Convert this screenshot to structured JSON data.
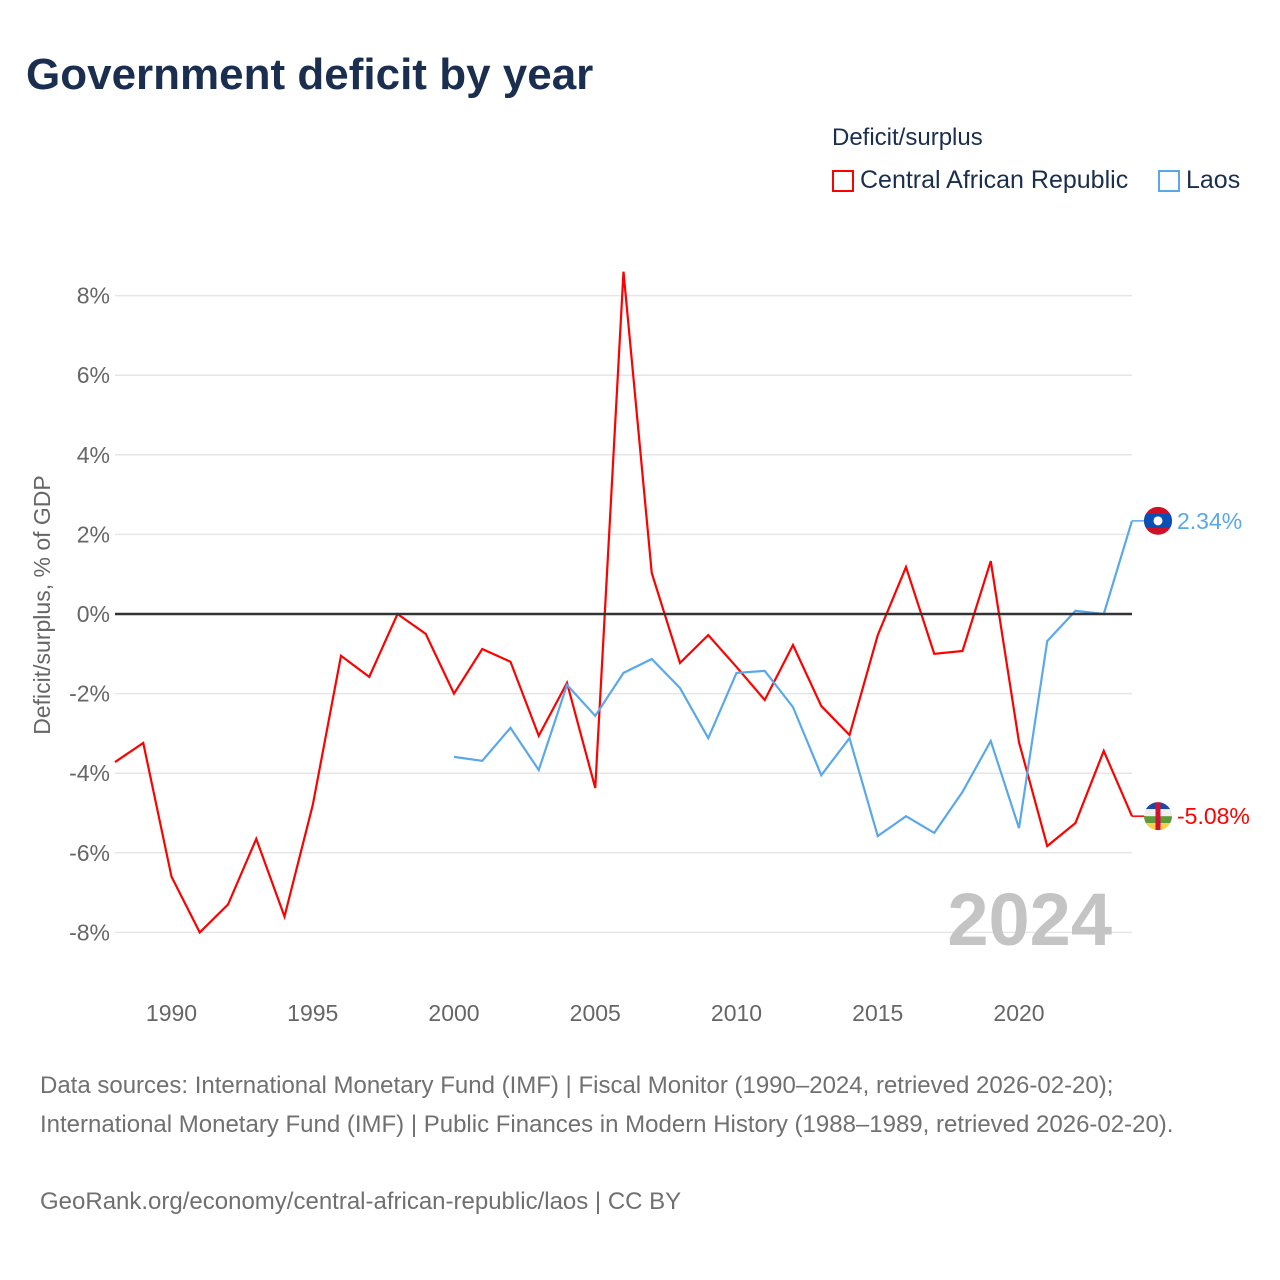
{
  "title": "Government deficit by year",
  "legend": {
    "title": "Deficit/surplus",
    "items": [
      {
        "name": "Central African Republic",
        "color": "#ff0000"
      },
      {
        "name": "Laos",
        "color": "#5aa8ea"
      }
    ]
  },
  "chart_data": {
    "type": "line",
    "title": "Government deficit by year",
    "xlabel": "",
    "ylabel": "Deficit/surplus, % of GDP",
    "xlim": [
      1988,
      2024
    ],
    "ylim": [
      -9.2,
      9
    ],
    "grid": true,
    "legend_position": "top-right",
    "x_ticks": [
      1990,
      1995,
      2000,
      2005,
      2010,
      2015,
      2020
    ],
    "x_tick_labels": [
      "1990",
      "1995",
      "2000",
      "2005",
      "2010",
      "2015",
      "2020"
    ],
    "y_ticks": [
      8,
      6,
      4,
      2,
      0,
      -2,
      -4,
      -6,
      -8
    ],
    "y_tick_labels": [
      "8%",
      "6%",
      "4%",
      "2%",
      "0%",
      "-2%",
      "-4%",
      "-6%",
      "-8%"
    ],
    "year_watermark": "2024",
    "series": [
      {
        "name": "Central African Republic",
        "color": "#ff0000",
        "end_label": "-5.08%",
        "x": [
          1988,
          1989,
          1990,
          1991,
          1992,
          1993,
          1994,
          1995,
          1996,
          1997,
          1998,
          1999,
          2000,
          2001,
          2002,
          2003,
          2004,
          2005,
          2006,
          2007,
          2008,
          2009,
          2010,
          2011,
          2012,
          2013,
          2014,
          2015,
          2016,
          2017,
          2018,
          2019,
          2020,
          2021,
          2022,
          2023,
          2024
        ],
        "values": [
          -3.72,
          -3.24,
          -6.6,
          -8.0,
          -7.3,
          -5.65,
          -7.6,
          -4.8,
          -1.05,
          -1.58,
          0.0,
          -0.5,
          -2.0,
          -0.88,
          -1.2,
          -3.06,
          -1.73,
          -4.37,
          8.6,
          1.03,
          -1.23,
          -0.53,
          -1.33,
          -2.16,
          -0.78,
          -2.31,
          -3.04,
          -0.53,
          1.18,
          -1.0,
          -0.93,
          1.33,
          -3.22,
          -5.83,
          -5.25,
          -3.44,
          -5.08
        ]
      },
      {
        "name": "Laos",
        "color": "#5aa8ea",
        "end_label": "2.34%",
        "x": [
          2000,
          2001,
          2002,
          2003,
          2004,
          2005,
          2006,
          2007,
          2008,
          2009,
          2010,
          2011,
          2012,
          2013,
          2014,
          2015,
          2016,
          2017,
          2018,
          2019,
          2020,
          2021,
          2022,
          2023,
          2024
        ],
        "values": [
          -3.59,
          -3.69,
          -2.86,
          -3.92,
          -1.78,
          -2.56,
          -1.48,
          -1.13,
          -1.86,
          -3.12,
          -1.48,
          -1.43,
          -2.34,
          -4.05,
          -3.12,
          -5.58,
          -5.08,
          -5.5,
          -4.47,
          -3.19,
          -5.38,
          -0.68,
          0.08,
          0.0,
          2.34
        ]
      }
    ]
  },
  "footer": {
    "sources": "Data sources: International Monetary Fund (IMF) | Fiscal Monitor (1990–2024, retrieved 2026-02-20); International Monetary Fund (IMF) | Public Finances in Modern History (1988–1989, retrieved 2026-02-20).",
    "credit": "GeoRank.org/economy/central-african-republic/laos | CC BY"
  }
}
